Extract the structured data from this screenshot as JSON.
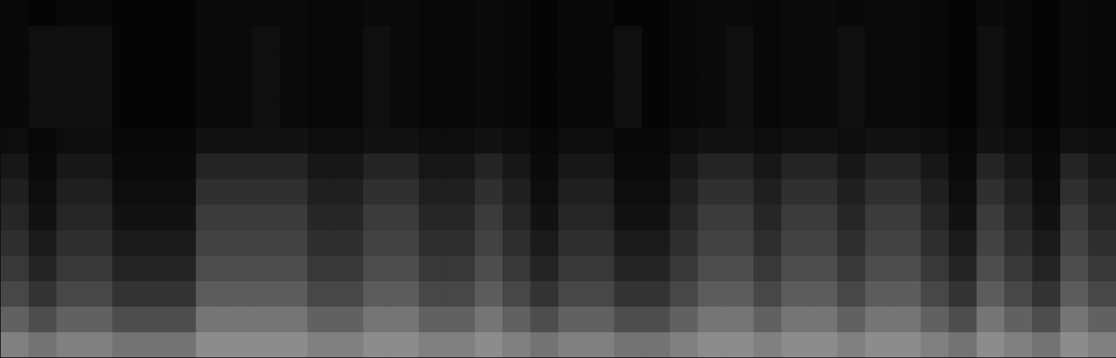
{
  "chart_data": {
    "type": "heatmap",
    "xlim": [
      0,
      40
    ],
    "ylim": [
      0,
      14
    ],
    "zlim": [
      0,
      1
    ],
    "color": "#ffffff",
    "grid": false,
    "tick_labels": false,
    "cells": [
      [
        0.5,
        0.45,
        0.5,
        0.5,
        0.45,
        0.45,
        0.45,
        0.55,
        0.55,
        0.55,
        0.55,
        0.5,
        0.5,
        0.55,
        0.55,
        0.5,
        0.5,
        0.55,
        0.5,
        0.45,
        0.5,
        0.5,
        0.45,
        0.45,
        0.5,
        0.55,
        0.55,
        0.5,
        0.55,
        0.55,
        0.5,
        0.55,
        0.55,
        0.5,
        0.45,
        0.55,
        0.5,
        0.45,
        0.55,
        0.5
      ],
      [
        0.38,
        0.3,
        0.38,
        0.38,
        0.3,
        0.3,
        0.3,
        0.46,
        0.46,
        0.46,
        0.46,
        0.38,
        0.38,
        0.46,
        0.46,
        0.38,
        0.38,
        0.46,
        0.38,
        0.3,
        0.38,
        0.38,
        0.3,
        0.3,
        0.38,
        0.46,
        0.46,
        0.38,
        0.46,
        0.46,
        0.38,
        0.46,
        0.46,
        0.38,
        0.3,
        0.46,
        0.38,
        0.3,
        0.46,
        0.38
      ],
      [
        0.28,
        0.2,
        0.28,
        0.28,
        0.2,
        0.2,
        0.2,
        0.36,
        0.36,
        0.36,
        0.36,
        0.28,
        0.28,
        0.36,
        0.36,
        0.28,
        0.28,
        0.36,
        0.28,
        0.2,
        0.28,
        0.28,
        0.2,
        0.2,
        0.28,
        0.36,
        0.36,
        0.28,
        0.36,
        0.36,
        0.28,
        0.36,
        0.36,
        0.28,
        0.2,
        0.36,
        0.28,
        0.2,
        0.36,
        0.28
      ],
      [
        0.22,
        0.14,
        0.22,
        0.22,
        0.14,
        0.14,
        0.14,
        0.3,
        0.3,
        0.3,
        0.3,
        0.22,
        0.22,
        0.3,
        0.3,
        0.22,
        0.22,
        0.3,
        0.22,
        0.14,
        0.22,
        0.22,
        0.14,
        0.14,
        0.22,
        0.3,
        0.3,
        0.22,
        0.3,
        0.3,
        0.22,
        0.3,
        0.3,
        0.22,
        0.14,
        0.3,
        0.22,
        0.14,
        0.3,
        0.22
      ],
      [
        0.18,
        0.1,
        0.18,
        0.18,
        0.1,
        0.1,
        0.1,
        0.26,
        0.26,
        0.26,
        0.26,
        0.18,
        0.18,
        0.26,
        0.26,
        0.18,
        0.18,
        0.26,
        0.18,
        0.1,
        0.18,
        0.18,
        0.1,
        0.1,
        0.18,
        0.26,
        0.26,
        0.18,
        0.26,
        0.26,
        0.18,
        0.26,
        0.26,
        0.18,
        0.1,
        0.26,
        0.18,
        0.1,
        0.26,
        0.18
      ],
      [
        0.15,
        0.07,
        0.15,
        0.15,
        0.07,
        0.07,
        0.07,
        0.23,
        0.23,
        0.23,
        0.23,
        0.15,
        0.15,
        0.23,
        0.23,
        0.15,
        0.15,
        0.23,
        0.15,
        0.07,
        0.15,
        0.15,
        0.07,
        0.07,
        0.15,
        0.23,
        0.23,
        0.15,
        0.23,
        0.23,
        0.15,
        0.23,
        0.23,
        0.15,
        0.07,
        0.23,
        0.15,
        0.07,
        0.23,
        0.15
      ],
      [
        0.12,
        0.05,
        0.12,
        0.12,
        0.05,
        0.05,
        0.05,
        0.19,
        0.19,
        0.19,
        0.19,
        0.12,
        0.12,
        0.19,
        0.19,
        0.12,
        0.12,
        0.19,
        0.12,
        0.05,
        0.12,
        0.12,
        0.05,
        0.05,
        0.12,
        0.19,
        0.19,
        0.12,
        0.19,
        0.19,
        0.12,
        0.19,
        0.19,
        0.12,
        0.05,
        0.19,
        0.12,
        0.05,
        0.19,
        0.12
      ],
      [
        0.09,
        0.04,
        0.09,
        0.09,
        0.04,
        0.04,
        0.04,
        0.14,
        0.14,
        0.14,
        0.14,
        0.09,
        0.09,
        0.14,
        0.14,
        0.09,
        0.09,
        0.14,
        0.09,
        0.04,
        0.09,
        0.09,
        0.04,
        0.04,
        0.09,
        0.14,
        0.14,
        0.09,
        0.14,
        0.14,
        0.09,
        0.14,
        0.14,
        0.09,
        0.04,
        0.14,
        0.09,
        0.04,
        0.14,
        0.09
      ],
      [
        0.05,
        0.03,
        0.05,
        0.05,
        0.03,
        0.03,
        0.03,
        0.07,
        0.07,
        0.07,
        0.07,
        0.05,
        0.05,
        0.07,
        0.07,
        0.05,
        0.05,
        0.07,
        0.05,
        0.03,
        0.05,
        0.05,
        0.03,
        0.03,
        0.05,
        0.07,
        0.07,
        0.05,
        0.07,
        0.07,
        0.05,
        0.07,
        0.07,
        0.05,
        0.03,
        0.07,
        0.05,
        0.03,
        0.07,
        0.05
      ],
      [
        0.03,
        0.06,
        0.06,
        0.06,
        0.02,
        0.02,
        0.02,
        0.04,
        0.04,
        0.06,
        0.04,
        0.03,
        0.03,
        0.06,
        0.04,
        0.03,
        0.03,
        0.04,
        0.03,
        0.02,
        0.03,
        0.03,
        0.06,
        0.02,
        0.03,
        0.04,
        0.06,
        0.03,
        0.04,
        0.04,
        0.06,
        0.04,
        0.04,
        0.03,
        0.02,
        0.06,
        0.03,
        0.02,
        0.04,
        0.03
      ],
      [
        0.03,
        0.06,
        0.06,
        0.06,
        0.02,
        0.02,
        0.02,
        0.04,
        0.04,
        0.06,
        0.04,
        0.03,
        0.03,
        0.06,
        0.04,
        0.03,
        0.03,
        0.04,
        0.03,
        0.02,
        0.03,
        0.03,
        0.06,
        0.02,
        0.03,
        0.04,
        0.06,
        0.03,
        0.04,
        0.04,
        0.06,
        0.04,
        0.04,
        0.03,
        0.02,
        0.06,
        0.03,
        0.02,
        0.04,
        0.03
      ],
      [
        0.03,
        0.06,
        0.06,
        0.06,
        0.02,
        0.02,
        0.02,
        0.04,
        0.04,
        0.06,
        0.04,
        0.03,
        0.03,
        0.06,
        0.04,
        0.03,
        0.03,
        0.04,
        0.03,
        0.02,
        0.03,
        0.03,
        0.06,
        0.02,
        0.03,
        0.04,
        0.06,
        0.03,
        0.04,
        0.04,
        0.06,
        0.04,
        0.04,
        0.03,
        0.02,
        0.06,
        0.03,
        0.02,
        0.04,
        0.03
      ],
      [
        0.03,
        0.06,
        0.06,
        0.06,
        0.02,
        0.02,
        0.02,
        0.04,
        0.04,
        0.06,
        0.04,
        0.03,
        0.03,
        0.06,
        0.04,
        0.03,
        0.03,
        0.04,
        0.03,
        0.02,
        0.03,
        0.03,
        0.06,
        0.02,
        0.03,
        0.04,
        0.06,
        0.03,
        0.04,
        0.04,
        0.06,
        0.04,
        0.04,
        0.03,
        0.02,
        0.06,
        0.03,
        0.02,
        0.04,
        0.03
      ],
      [
        0.03,
        0.02,
        0.03,
        0.03,
        0.02,
        0.02,
        0.02,
        0.04,
        0.04,
        0.04,
        0.04,
        0.03,
        0.03,
        0.04,
        0.04,
        0.03,
        0.03,
        0.04,
        0.03,
        0.02,
        0.03,
        0.03,
        0.02,
        0.02,
        0.03,
        0.04,
        0.04,
        0.03,
        0.04,
        0.04,
        0.03,
        0.04,
        0.04,
        0.03,
        0.02,
        0.04,
        0.03,
        0.02,
        0.04,
        0.03
      ]
    ]
  }
}
